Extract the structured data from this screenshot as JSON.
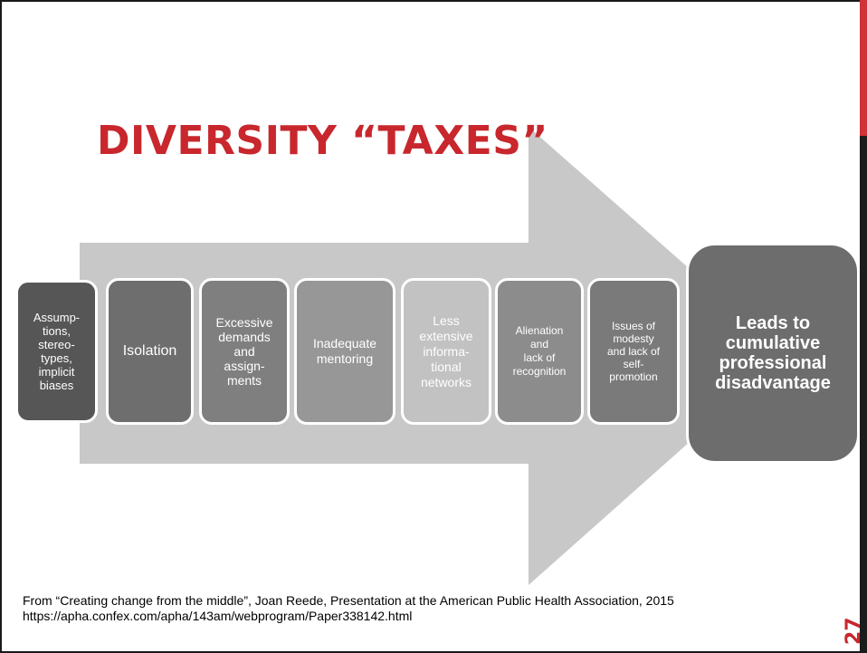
{
  "title": "DIVERSITY “TAXES”",
  "steps": [
    {
      "label": "Assump-\ntions,\nstereo-\ntypes,\nimplicit\nbiases",
      "color": "#565656"
    },
    {
      "label": "Isolation",
      "color": "#6e6e6e"
    },
    {
      "label": "Excessive\ndemands\nand\nassign-\nments",
      "color": "#7f7f7f"
    },
    {
      "label": "Inadequate\nmentoring",
      "color": "#979797"
    },
    {
      "label": "Less\nextensive\ninforma-\ntional\nnetworks",
      "color": "#c2c2c2"
    },
    {
      "label": "Alienation\nand\nlack of\nrecognition",
      "color": "#8c8c8c"
    },
    {
      "label": "Issues of\nmodesty\nand lack of\nself-\npromotion",
      "color": "#7a7a7a"
    }
  ],
  "result": {
    "label": "Leads to\ncumulative\nprofessional\ndisadvantage",
    "color": "#6d6d6d"
  },
  "arrow_color": "#c8c8c8",
  "citation": "From “Creating change from the middle”, Joan Reede, Presentation at the American Public Health Association, 2015 https://apha.confex.com/apha/143am/webprogram/Paper338142.html",
  "page_number": "27"
}
